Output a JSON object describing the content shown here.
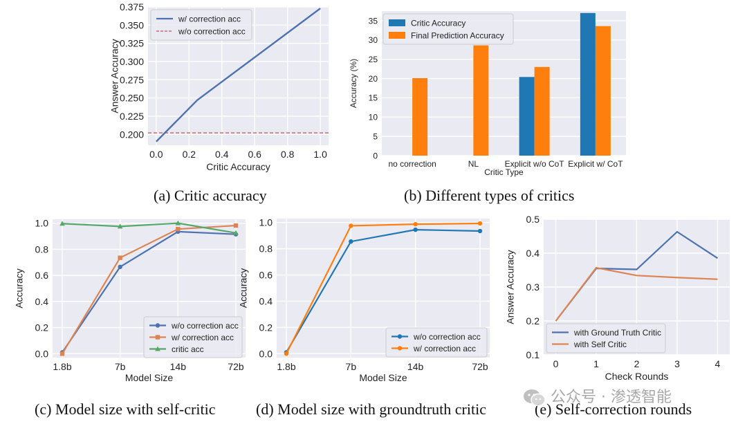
{
  "captions": {
    "a": "(a) Critic accuracy",
    "b": "(b) Different types of critics",
    "c": "(c) Model size with self-critic",
    "d": "(d) Model size with groundtruth critic",
    "e": "(e) Self-correction rounds"
  },
  "watermark": "公众号 · 渗透智能",
  "colors": {
    "blue": "#4c72b0",
    "orange": "#dd8452",
    "green": "#55a868",
    "red": "#c44e52",
    "bar_blue": "#1f77b4",
    "bar_orange": "#ff7f0e",
    "panel_bg": "#eaeaf2"
  },
  "chart_data": [
    {
      "id": "a",
      "type": "line",
      "xlabel": "Critic Accuracy",
      "ylabel": "Answer Accuracy",
      "xlim": [
        -0.05,
        1.05
      ],
      "ylim": [
        0.185,
        0.375
      ],
      "xticks": [
        0.0,
        0.2,
        0.4,
        0.6,
        0.8,
        1.0
      ],
      "xtick_labels": [
        "0.0",
        "0.2",
        "0.4",
        "0.6",
        "0.8",
        "1.0"
      ],
      "yticks": [
        0.2,
        0.225,
        0.25,
        0.275,
        0.3,
        0.325,
        0.35,
        0.375
      ],
      "ytick_labels": [
        "0.200",
        "0.225",
        "0.250",
        "0.275",
        "0.300",
        "0.325",
        "0.350",
        "0.375"
      ],
      "grid": true,
      "legend": "top-left",
      "series": [
        {
          "name": "w/ correction acc",
          "color": "#4c72b0",
          "style": "solid",
          "x": [
            0.0,
            0.25,
            1.0
          ],
          "y": [
            0.19,
            0.247,
            0.373
          ]
        },
        {
          "name": "w/o correction acc",
          "color": "#c44e52",
          "style": "dashed",
          "hline": 0.202
        }
      ]
    },
    {
      "id": "b",
      "type": "bar",
      "xlabel": "Critic Type",
      "ylabel": "Accuracy (%)",
      "ylim": [
        0,
        37.5
      ],
      "categories": [
        "no correction",
        "NL",
        "Explicit w/o CoT",
        "Explicit w/ CoT"
      ],
      "yticks": [
        0,
        5,
        10,
        15,
        20,
        25,
        30,
        35
      ],
      "ytick_labels": [
        "0",
        "5",
        "10",
        "15",
        "20",
        "25",
        "30",
        "35"
      ],
      "grid": true,
      "legend": "top-left",
      "series": [
        {
          "name": "Critic Accuracy",
          "color": "#1f77b4",
          "values": [
            null,
            null,
            20.4,
            37.0
          ]
        },
        {
          "name": "Final Prediction Accuracy",
          "color": "#ff7f0e",
          "values": [
            20.1,
            28.6,
            23.0,
            33.6
          ]
        }
      ]
    },
    {
      "id": "c",
      "type": "line",
      "xlabel": "Model Size",
      "ylabel": "Accuracy",
      "categories": [
        "1.8b",
        "7b",
        "14b",
        "72b"
      ],
      "ylim": [
        -0.03,
        1.03
      ],
      "yticks": [
        0.0,
        0.2,
        0.4,
        0.6,
        0.8,
        1.0
      ],
      "ytick_labels": [
        "0.0",
        "0.2",
        "0.4",
        "0.6",
        "0.8",
        "1.0"
      ],
      "grid": true,
      "legend": "bottom-right",
      "series": [
        {
          "name": "w/o correction acc",
          "color": "#4c72b0",
          "marker": "circle",
          "values": [
            0.01,
            0.665,
            0.935,
            0.915
          ]
        },
        {
          "name": "w/ correction acc",
          "color": "#dd8452",
          "marker": "square",
          "values": [
            0.0,
            0.735,
            0.955,
            0.982
          ]
        },
        {
          "name": "critic acc",
          "color": "#55a868",
          "marker": "triangle",
          "values": [
            0.997,
            0.975,
            1.0,
            0.925
          ]
        }
      ]
    },
    {
      "id": "d",
      "type": "line",
      "xlabel": "Model Size",
      "ylabel": "Accuracy",
      "categories": [
        "1.8b",
        "7b",
        "14b",
        "72b"
      ],
      "ylim": [
        -0.03,
        1.03
      ],
      "yticks": [
        0.0,
        0.2,
        0.4,
        0.6,
        0.8,
        1.0
      ],
      "ytick_labels": [
        "0.0",
        "0.2",
        "0.4",
        "0.6",
        "0.8",
        "1.0"
      ],
      "grid": true,
      "legend": "bottom-right",
      "series": [
        {
          "name": "w/o correction acc",
          "color": "#1f77b4",
          "marker": "circle",
          "values": [
            0.01,
            0.855,
            0.945,
            0.935
          ]
        },
        {
          "name": "w/ correction acc",
          "color": "#ff7f0e",
          "marker": "circle",
          "values": [
            0.0,
            0.975,
            0.987,
            0.993
          ]
        }
      ]
    },
    {
      "id": "e",
      "type": "line",
      "xlabel": "Check Rounds",
      "ylabel": "Answer Accuracy",
      "xlim": [
        -0.3,
        4.3
      ],
      "ylim": [
        0.1,
        0.5
      ],
      "xticks": [
        0,
        1,
        2,
        3,
        4
      ],
      "xtick_labels": [
        "0",
        "1",
        "2",
        "3",
        "4"
      ],
      "yticks": [
        0.1,
        0.2,
        0.3,
        0.4,
        0.5
      ],
      "ytick_labels": [
        "0.1",
        "0.2",
        "0.3",
        "0.4",
        "0.5"
      ],
      "grid": true,
      "legend": "bottom-left",
      "series": [
        {
          "name": "with Ground Truth Critic",
          "color": "#4c72b0",
          "x": [
            0,
            1,
            2,
            3,
            4
          ],
          "y": [
            0.2,
            0.355,
            0.352,
            0.463,
            0.385
          ]
        },
        {
          "name": "with Self Critic",
          "color": "#dd8452",
          "x": [
            0,
            1,
            2,
            3,
            4
          ],
          "y": [
            0.2,
            0.357,
            0.334,
            0.328,
            0.323
          ]
        }
      ]
    }
  ]
}
